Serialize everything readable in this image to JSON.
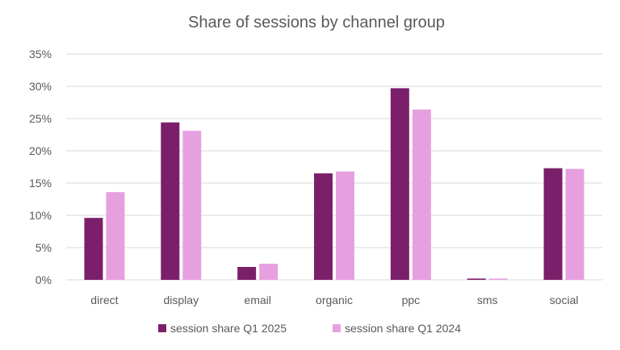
{
  "chart_data": {
    "type": "bar",
    "title": "Share of sessions by channel group",
    "categories": [
      "direct",
      "display",
      "email",
      "organic",
      "ppc",
      "sms",
      "social"
    ],
    "series": [
      {
        "name": "session share Q1 2025",
        "color": "#7b1f6a",
        "values": [
          9.6,
          24.4,
          2.0,
          16.5,
          29.7,
          0.2,
          17.3
        ]
      },
      {
        "name": "session share Q1 2024",
        "color": "#e6a0e0",
        "values": [
          13.6,
          23.1,
          2.5,
          16.8,
          26.4,
          0.2,
          17.2
        ]
      }
    ],
    "y_ticks": [
      "0%",
      "5%",
      "10%",
      "15%",
      "20%",
      "25%",
      "30%",
      "35%"
    ],
    "ylim": [
      0,
      35
    ],
    "grid": true,
    "legend_position": "bottom"
  }
}
